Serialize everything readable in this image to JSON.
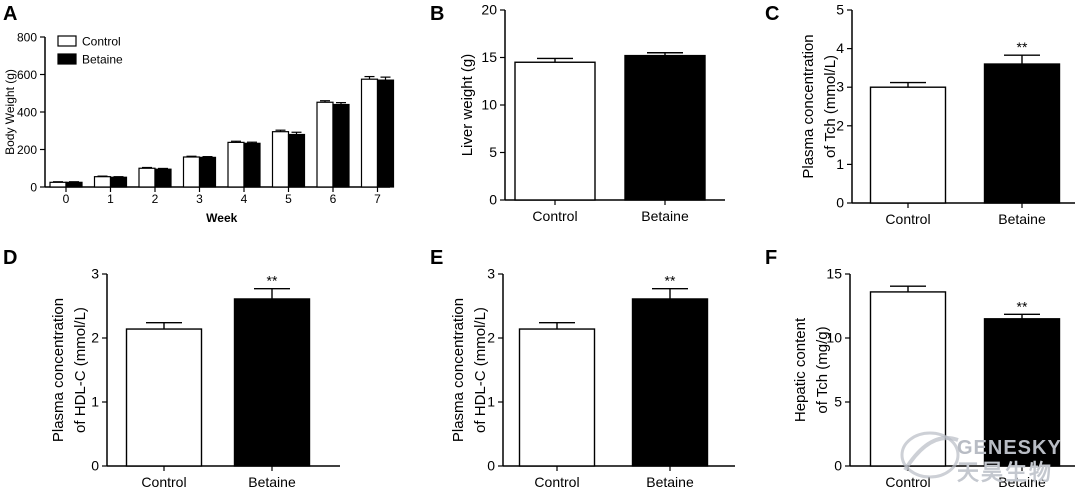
{
  "chart_data": [
    {
      "id": "A",
      "type": "bar",
      "panel_label": "A",
      "xlabel": "Week",
      "ylabel": "Body Weight (g)",
      "ylim": [
        0,
        800
      ],
      "yticks": [
        0,
        200,
        400,
        600,
        800
      ],
      "categories": [
        "0",
        "1",
        "2",
        "3",
        "4",
        "5",
        "6",
        "7"
      ],
      "legend": "top-left",
      "series": [
        {
          "name": "Control",
          "fill": "#ffffff",
          "values": [
            25,
            55,
            100,
            160,
            238,
            295,
            452,
            575
          ],
          "errors": [
            3,
            3,
            4,
            4,
            6,
            8,
            8,
            14
          ]
        },
        {
          "name": "Betaine",
          "fill": "#000000",
          "values": [
            25,
            52,
            95,
            158,
            233,
            280,
            440,
            570
          ],
          "errors": [
            3,
            3,
            4,
            4,
            6,
            12,
            10,
            16
          ]
        }
      ]
    },
    {
      "id": "B",
      "type": "bar",
      "panel_label": "B",
      "ylabel": "Liver weight (g)",
      "ylim": [
        0,
        20
      ],
      "yticks": [
        0,
        5,
        10,
        15,
        20
      ],
      "categories": [
        "Control",
        "Betaine"
      ],
      "values": [
        14.5,
        15.2
      ],
      "errors": [
        0.4,
        0.3
      ],
      "fills": [
        "#ffffff",
        "#000000"
      ],
      "annotations": [
        "",
        ""
      ]
    },
    {
      "id": "C",
      "type": "bar",
      "panel_label": "C",
      "ylabel_lines": [
        "Plasma concentration",
        "of Tch (mmol/L)"
      ],
      "ylim": [
        0,
        5
      ],
      "yticks": [
        0,
        1,
        2,
        3,
        4,
        5
      ],
      "categories": [
        "Control",
        "Betaine"
      ],
      "values": [
        3.0,
        3.6
      ],
      "errors": [
        0.12,
        0.23
      ],
      "fills": [
        "#ffffff",
        "#000000"
      ],
      "annotations": [
        "",
        "**"
      ]
    },
    {
      "id": "D",
      "type": "bar",
      "panel_label": "D",
      "ylabel_lines": [
        "Plasma concentration",
        "of HDL-C (mmol/L)"
      ],
      "ylim": [
        0,
        3
      ],
      "yticks": [
        0,
        1,
        2,
        3
      ],
      "categories": [
        "Control",
        "Betaine"
      ],
      "values": [
        2.14,
        2.61
      ],
      "errors": [
        0.1,
        0.16
      ],
      "fills": [
        "#ffffff",
        "#000000"
      ],
      "annotations": [
        "",
        "**"
      ]
    },
    {
      "id": "E",
      "type": "bar",
      "panel_label": "E",
      "ylabel_lines": [
        "Plasma concentration",
        "of HDL-C (mmol/L)"
      ],
      "ylim": [
        0,
        3
      ],
      "yticks": [
        0,
        1,
        2,
        3
      ],
      "categories": [
        "Control",
        "Betaine"
      ],
      "values": [
        2.14,
        2.61
      ],
      "errors": [
        0.1,
        0.16
      ],
      "fills": [
        "#ffffff",
        "#000000"
      ],
      "annotations": [
        "",
        "**"
      ]
    },
    {
      "id": "F",
      "type": "bar",
      "panel_label": "F",
      "ylabel_lines": [
        "Hepatic content",
        "of Tch (mg/g)"
      ],
      "ylim": [
        0,
        15
      ],
      "yticks": [
        0,
        5,
        10,
        15
      ],
      "categories": [
        "Control",
        "Betaine"
      ],
      "values": [
        13.6,
        11.5
      ],
      "errors": [
        0.45,
        0.35
      ],
      "fills": [
        "#ffffff",
        "#000000"
      ],
      "annotations": [
        "",
        "**"
      ]
    }
  ],
  "watermark": {
    "brand": "GENESKY",
    "brand_cn": "天昊生物",
    "color": "#b8bcc4"
  }
}
